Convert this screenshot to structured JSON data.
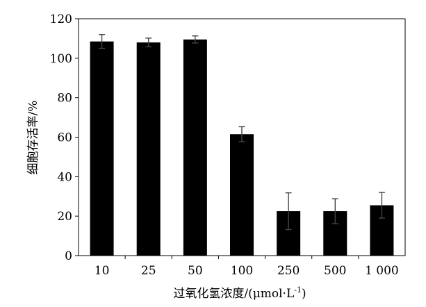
{
  "chart_data": {
    "type": "bar",
    "title": "",
    "xlabel": "过氧化氢浓度/(μmol·L",
    "xlabel_superscript": "-1",
    "xlabel_suffix": ")",
    "ylabel": "细胞存活率/%",
    "categories": [
      "10",
      "25",
      "50",
      "100",
      "250",
      "500",
      "1 000"
    ],
    "values": [
      108.5,
      108.0,
      109.5,
      61.5,
      22.5,
      22.5,
      25.5
    ],
    "errors": [
      3.5,
      2.2,
      1.8,
      3.8,
      9.3,
      6.3,
      6.5
    ],
    "ylim": [
      0,
      120
    ],
    "yticks": [
      0,
      20,
      40,
      60,
      80,
      100,
      120
    ],
    "bar_color": "#000000",
    "grid": false,
    "legend": "none"
  }
}
